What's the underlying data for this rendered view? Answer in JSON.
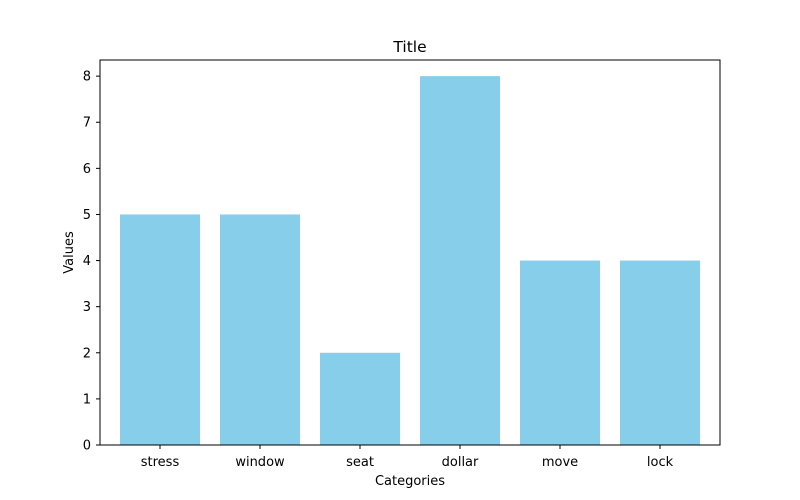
{
  "chart_data": {
    "type": "bar",
    "title": "Title",
    "xlabel": "Categories",
    "ylabel": "Values",
    "categories": [
      "stress",
      "window",
      "seat",
      "dollar",
      "move",
      "lock"
    ],
    "values": [
      5,
      5,
      2,
      8,
      4,
      4
    ],
    "ylim": [
      0,
      8.35
    ],
    "yticks": [
      0,
      1,
      2,
      3,
      4,
      5,
      6,
      7,
      8
    ],
    "grid": false,
    "bar_color": "#87ceeb"
  }
}
